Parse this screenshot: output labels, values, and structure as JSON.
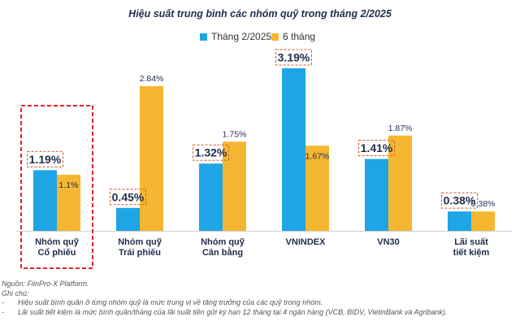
{
  "chart_data": {
    "type": "bar",
    "title": "Hiệu suất trung bình các nhóm quỹ trong tháng 2/2025",
    "categories": [
      [
        "Nhóm quỹ",
        "Cổ phiếu"
      ],
      [
        "Nhóm quỹ",
        "Trái phiếu"
      ],
      [
        "Nhóm quỹ",
        "Cân bằng"
      ],
      [
        "VNINDEX"
      ],
      [
        "VN30"
      ],
      [
        "Lãi suất",
        "tiết kiệm"
      ]
    ],
    "series": [
      {
        "name": "Tháng 2/2025",
        "color": "#1ea5e6",
        "values": [
          1.19,
          0.45,
          1.32,
          3.19,
          1.41,
          0.38
        ],
        "labels": [
          "1.19%",
          "0.45%",
          "1.32%",
          "3.19%",
          "1.41%",
          "0.38%"
        ]
      },
      {
        "name": "6 tháng",
        "color": "#f5b731",
        "values": [
          1.1,
          2.84,
          1.75,
          1.67,
          1.87,
          0.38
        ],
        "labels": [
          "1.1%",
          "2.84%",
          "1.75%",
          "1.67%",
          "1.87%",
          "0.38%"
        ]
      }
    ],
    "ylim": [
      0,
      3.5
    ],
    "grid": false,
    "legend": "top-center",
    "highlight_category": 0
  },
  "notes": {
    "source": "Nguồn: FiinPro-X Platform.",
    "heading": "Ghi chú:",
    "items": [
      "Hiệu suất bình quân ở từng nhóm quỹ là mức trung vị về tăng trưởng của các quỹ trong nhóm.",
      "Lãi suất tiết kiệm là mức bình quân/tháng của lãi suất tiền gửi kỳ hạn 12 tháng tại 4 ngân hàng (VCB, BIDV, VietinBank và Agribank)."
    ]
  }
}
